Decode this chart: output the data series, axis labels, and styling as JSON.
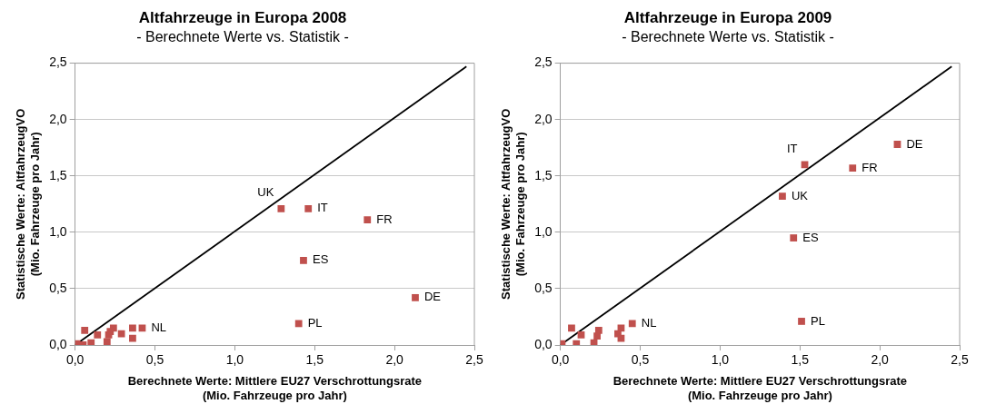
{
  "chart_data": [
    {
      "type": "scatter",
      "title": "Altfahrzeuge in Europa 2008",
      "subtitle": "- Berechnete Werte vs. Statistik -",
      "xlabel": "Berechnete Werte: Mittlere EU27 Verschrottungsrate\n(Mio. Fahrzeuge pro Jahr)",
      "ylabel": "Statistische Werte: AltfahrzeugVO\n(Mio. Fahrzeuge pro Jahr)",
      "xlim": [
        0,
        2.5
      ],
      "ylim": [
        0,
        2.5
      ],
      "xticks": [
        {
          "value": 0,
          "label": "0,0"
        },
        {
          "value": 0.5,
          "label": "0,5"
        },
        {
          "value": 1,
          "label": "1,0"
        },
        {
          "value": 1.5,
          "label": "1,5"
        },
        {
          "value": 2,
          "label": "2,0"
        },
        {
          "value": 2.5,
          "label": "2,5"
        }
      ],
      "yticks": [
        {
          "value": 0,
          "label": "0,0"
        },
        {
          "value": 0.5,
          "label": "0,5"
        },
        {
          "value": 1,
          "label": "1,0"
        },
        {
          "value": 1.5,
          "label": "1,5"
        },
        {
          "value": 2,
          "label": "2,0"
        },
        {
          "value": 2.5,
          "label": "2,5"
        }
      ],
      "grid": "y",
      "legend": false,
      "marker": "square",
      "series": [
        {
          "color": "#c0504d",
          "x": [
            1.29,
            1.46,
            1.83,
            1.43,
            2.13,
            1.4,
            0.42,
            0.06,
            0.01,
            0.05,
            0.1,
            0.14,
            0.2,
            0.21,
            0.24,
            0.29,
            0.36,
            0.36,
            0.22
          ],
          "values": [
            1.21,
            1.21,
            1.11,
            0.75,
            0.42,
            0.19,
            0.15,
            0.13,
            0.01,
            0.0,
            0.02,
            0.09,
            0.03,
            0.09,
            0.15,
            0.1,
            0.15,
            0.06,
            0.12
          ]
        },
        {
          "type": "line",
          "color": "#000000",
          "marker": "none",
          "x": [
            0,
            2.45
          ],
          "values": [
            0,
            2.47
          ]
        }
      ],
      "annotations": [
        {
          "text": "UK",
          "x": 1.29,
          "y": 1.21
        },
        {
          "text": "IT",
          "x": 1.46,
          "y": 1.21
        },
        {
          "text": "FR",
          "x": 1.83,
          "y": 1.11
        },
        {
          "text": "ES",
          "x": 1.43,
          "y": 0.75
        },
        {
          "text": "DE",
          "x": 2.13,
          "y": 0.42
        },
        {
          "text": "PL",
          "x": 1.4,
          "y": 0.19
        },
        {
          "text": "NL",
          "x": 0.42,
          "y": 0.15
        }
      ]
    },
    {
      "type": "scatter",
      "title": "Altfahrzeuge in Europa 2009",
      "subtitle": "- Berechnete Werte vs. Statistik -",
      "xlabel": "Berechnete Werte: Mittlere EU27 Verschrottungsrate\n(Mio. Fahrzeuge pro Jahr)",
      "ylabel": "Statistische Werte: AltfahrzeugVO\n(Mio. Fahrzeuge pro Jahr)",
      "xlim": [
        0,
        2.5
      ],
      "ylim": [
        0,
        2.5
      ],
      "xticks": [
        {
          "value": 0,
          "label": "0,0"
        },
        {
          "value": 0.5,
          "label": "0,5"
        },
        {
          "value": 1,
          "label": "1,0"
        },
        {
          "value": 1.5,
          "label": "1,5"
        },
        {
          "value": 2,
          "label": "2,0"
        },
        {
          "value": 2.5,
          "label": "2,5"
        }
      ],
      "yticks": [
        {
          "value": 0,
          "label": "0,0"
        },
        {
          "value": 0.5,
          "label": "0,5"
        },
        {
          "value": 1,
          "label": "1,0"
        },
        {
          "value": 1.5,
          "label": "1,5"
        },
        {
          "value": 2,
          "label": "2,0"
        },
        {
          "value": 2.5,
          "label": "2,5"
        }
      ],
      "grid": "y",
      "legend": false,
      "marker": "square",
      "series": [
        {
          "color": "#c0504d",
          "x": [
            2.11,
            1.83,
            1.53,
            1.39,
            1.46,
            1.51,
            0.45,
            0.07,
            0.01,
            0.1,
            0.13,
            0.21,
            0.24,
            0.23,
            0.36,
            0.38,
            0.38
          ],
          "values": [
            1.78,
            1.57,
            1.6,
            1.32,
            0.95,
            0.21,
            0.19,
            0.15,
            0.01,
            0.01,
            0.09,
            0.02,
            0.13,
            0.08,
            0.1,
            0.06,
            0.15
          ]
        },
        {
          "type": "line",
          "color": "#000000",
          "marker": "none",
          "x": [
            0,
            2.45
          ],
          "values": [
            0,
            2.47
          ]
        }
      ],
      "annotations": [
        {
          "text": "DE",
          "x": 2.11,
          "y": 1.78
        },
        {
          "text": "FR",
          "x": 1.83,
          "y": 1.57
        },
        {
          "text": "IT",
          "x": 1.53,
          "y": 1.6
        },
        {
          "text": "UK",
          "x": 1.39,
          "y": 1.32
        },
        {
          "text": "ES",
          "x": 1.46,
          "y": 0.95
        },
        {
          "text": "PL",
          "x": 1.51,
          "y": 0.21
        },
        {
          "text": "NL",
          "x": 0.45,
          "y": 0.19
        }
      ]
    }
  ]
}
